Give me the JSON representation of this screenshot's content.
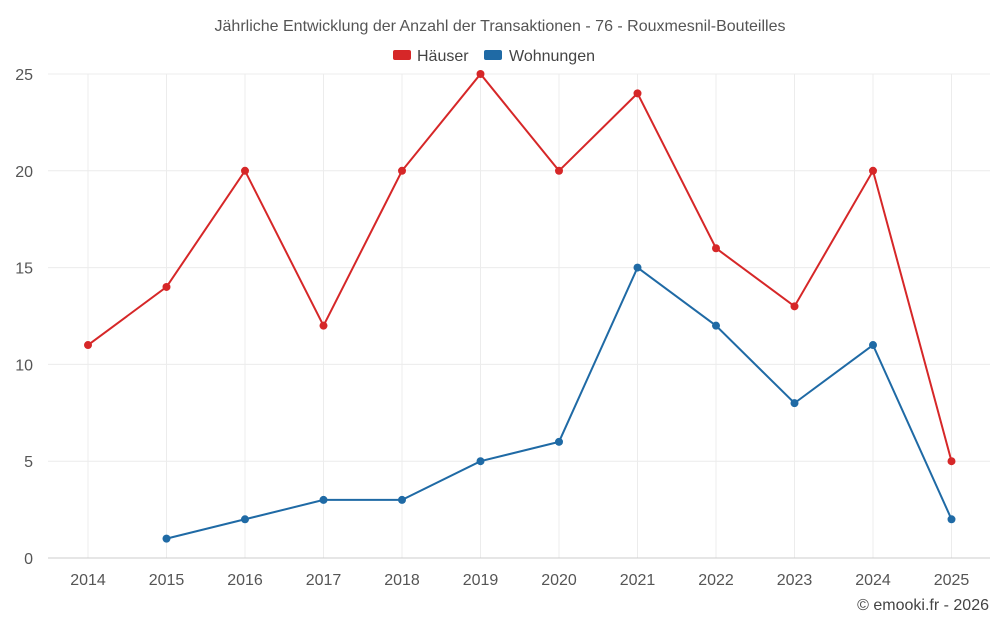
{
  "chart_data": {
    "type": "line",
    "title": "Jährliche Entwicklung der Anzahl der Transaktionen - 76 - Rouxmesnil-Bouteilles",
    "categories": [
      "2014",
      "2015",
      "2016",
      "2017",
      "2018",
      "2019",
      "2020",
      "2021",
      "2022",
      "2023",
      "2024",
      "2025"
    ],
    "ylim": [
      0,
      25
    ],
    "yticks": [
      "0",
      "5",
      "10",
      "15",
      "20",
      "25"
    ],
    "grid": true,
    "legend_position": "top-center",
    "series": [
      {
        "name": "Häuser",
        "color": "#d62728",
        "values": [
          11,
          14,
          20,
          12,
          20,
          25,
          20,
          24,
          16,
          13,
          20,
          5
        ]
      },
      {
        "name": "Wohnungen",
        "color": "#1f6aa5",
        "values": [
          null,
          1,
          2,
          3,
          3,
          5,
          6,
          15,
          12,
          8,
          11,
          2
        ]
      }
    ]
  },
  "credit": "© emooki.fr - 2026"
}
